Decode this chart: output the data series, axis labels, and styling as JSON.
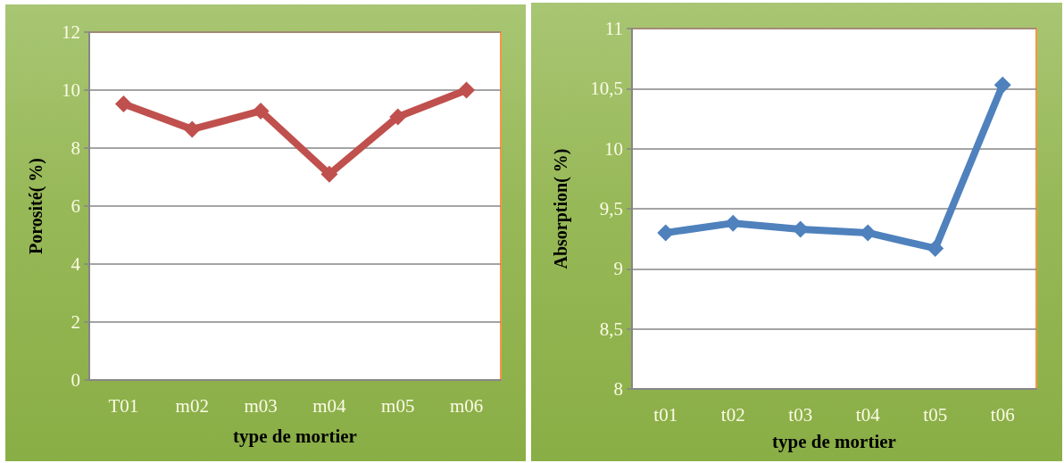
{
  "chart_data": [
    {
      "type": "line",
      "categories": [
        "T01",
        "m02",
        "m03",
        "m04",
        "m05",
        "m06"
      ],
      "values": [
        9.52,
        8.65,
        9.28,
        7.1,
        9.08,
        10.0
      ],
      "color": "#c0504d",
      "xlabel": "type de mortier",
      "ylabel": "Porosité( %)",
      "ylim": [
        0,
        12
      ],
      "yticks": [
        0,
        2,
        4,
        6,
        8,
        10,
        12
      ],
      "grid": "y",
      "marker": "diamond",
      "line_style": "solid"
    },
    {
      "type": "line",
      "categories": [
        "t01",
        "t02",
        "t03",
        "t04",
        "t05",
        "t06"
      ],
      "values": [
        9.3,
        9.38,
        9.33,
        9.3,
        9.17,
        10.53
      ],
      "color": "#4f81bd",
      "xlabel": "type de mortier",
      "ylabel": "Absorption( %)",
      "ylim": [
        8,
        11
      ],
      "yticks": [
        8,
        {
          "value": 8.5,
          "label": "8,5"
        },
        9,
        {
          "value": 9.5,
          "label": "9,5"
        },
        10,
        {
          "value": 10.5,
          "label": "10,5"
        },
        11
      ],
      "grid": "y",
      "marker": "diamond",
      "line_style": "solid"
    }
  ]
}
